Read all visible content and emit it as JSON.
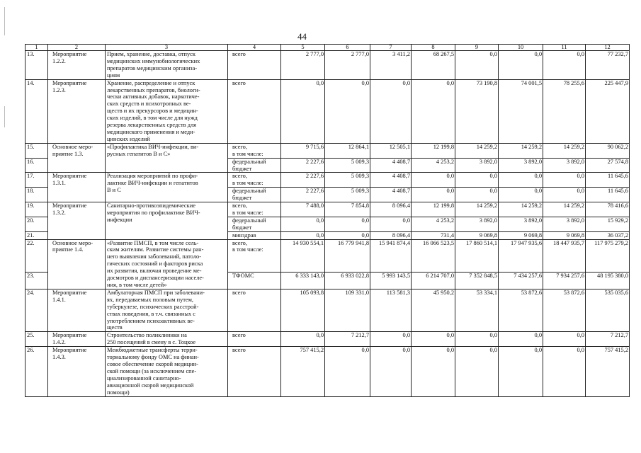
{
  "page_number": "44",
  "header": [
    "1",
    "2",
    "3",
    "4",
    "5",
    "6",
    "7",
    "8",
    "9",
    "10",
    "11",
    "12"
  ],
  "groups": [
    {
      "name": "Мероприятие\n1.2.2.",
      "desc": "Прием, хранение, доставка, отпуск\nмедицинских иммунобиологических\nпрепаратов медицинским организа-\nциям",
      "rows": [
        {
          "n": "13.",
          "source": "всего",
          "values": [
            "2 777,0",
            "2 777,0",
            "3 411,2",
            "68 267,5",
            "0,0",
            "0,0",
            "0,0",
            "77 232,7"
          ]
        }
      ]
    },
    {
      "name": "Мероприятие\n1.2.3.",
      "desc": "Хранение, распределение и отпуск\nлекарственных препаратов, биологи-\nчески активных добавок, наркотиче-\nских средств и психотропных ве-\nществ и их прекурсоров и медицин-\nских изделий, в том числе для нужд\nрезерва лекарственных средств для\nмедицинского применения и меди-\nцинских изделий",
      "rows": [
        {
          "n": "14.",
          "source": "всего",
          "values": [
            "0,0",
            "0,0",
            "0,0",
            "0,0",
            "73 190,8",
            "74 001,5",
            "78 255,6",
            "225 447,9"
          ]
        }
      ]
    },
    {
      "name": "Основное меро-\nприятие 1.3.",
      "desc": "«Профилактика ВИЧ-инфекции, ви-\nрусных гепатитов В и С»",
      "rows": [
        {
          "n": "15.",
          "source": "всего,\nв том числе:",
          "values": [
            "9 715,6",
            "12 864,1",
            "12 505,1",
            "12 199,8",
            "14 259,2",
            "14 259,2",
            "14 259,2",
            "90 062,2"
          ]
        },
        {
          "n": "16.",
          "source": "федеральный\nбюджет",
          "values": [
            "2 227,6",
            "5 009,3",
            "4 408,7",
            "4 253,2",
            "3 892,0",
            "3 892,0",
            "3 892,0",
            "27 574,8"
          ]
        }
      ]
    },
    {
      "name": "Мероприятие\n1.3.1.",
      "desc": "Реализация мероприятий по профи-\nлактике ВИЧ-инфекции и гепатитов\nВ и С",
      "rows": [
        {
          "n": "17.",
          "source": "всего,\nв том числе:",
          "values": [
            "2 227,6",
            "5 009,3",
            "4 408,7",
            "0,0",
            "0,0",
            "0,0",
            "0,0",
            "11 645,6"
          ]
        },
        {
          "n": "18.",
          "source": "федеральный\nбюджет",
          "values": [
            "2 227,6",
            "5 009,3",
            "4 408,7",
            "0,0",
            "0,0",
            "0,0",
            "0,0",
            "11 645,6"
          ]
        }
      ]
    },
    {
      "name": "Мероприятие\n1.3.2.",
      "desc": "Санитарно-противоэпидемические\nмероприятия по профилактике ВИЧ-\nинфекции",
      "rows": [
        {
          "n": "19.",
          "source": "всего,\nв том числе:",
          "values": [
            "7 488,0",
            "7 854,8",
            "8 096,4",
            "12 199,8",
            "14 259,2",
            "14 259,2",
            "14 259,2",
            "78 416,6"
          ]
        },
        {
          "n": "20.",
          "source": "федеральный\nбюджет",
          "values": [
            "0,0",
            "0,0",
            "0,0",
            "4 253,2",
            "3 892,0",
            "3 892,0",
            "3 892,0",
            "15 929,2"
          ]
        },
        {
          "n": "21.",
          "source": "минздрав",
          "values": [
            "0,0",
            "0,0",
            "8 096,4",
            "731,4",
            "9 069,8",
            "9 069,8",
            "9 069,8",
            "36 037,2"
          ]
        }
      ]
    },
    {
      "name": "Основное меро-\nприятие 1.4.",
      "desc": "«Развитие ПМСП, в том числе сель-\nским жителям. Развитие системы ран-\nнего выявления заболеваний, патоло-\nгических состояний и факторов риска\nих развития, включая проведение ме-\nдосмотров и диспансеризации населе-\nния, в том числе детей»",
      "rows": [
        {
          "n": "22.",
          "source": "всего,\nв том числе:",
          "values": [
            "14 930 554,1",
            "16 779 941,8",
            "15 941 874,4",
            "16 066 523,5",
            "17 860 514,1",
            "17 947 935,6",
            "18 447 935,7",
            "117 975 279,2"
          ]
        },
        {
          "n": "23.",
          "source": "ТФОМС",
          "values": [
            "6 333 143,0",
            "6 933 022,8",
            "5 993 143,5",
            "6 214 707,0",
            "7 352 848,5",
            "7 434 257,6",
            "7 934 257,6",
            "48 195 380,0"
          ]
        }
      ]
    },
    {
      "name": "Мероприятие\n1.4.1.",
      "desc": "Амбулаторная ПМСП при заболевани-\nях, передаваемых половым путем,\nтуберкулезе, психических расстрой-\nствах поведения, в т.ч. связанных с\nупотреблением психоактивных ве-\nществ",
      "rows": [
        {
          "n": "24.",
          "source": "всего",
          "values": [
            "105 093,8",
            "109 331,0",
            "113 581,3",
            "45 950,2",
            "53 334,1",
            "53 872,6",
            "53 872,6",
            "535 035,6"
          ]
        }
      ]
    },
    {
      "name": "Мероприятие\n1.4.2.",
      "desc": "Строительство поликлиники на\n 250 посещений в смену в с. Тоцкое",
      "rows": [
        {
          "n": "25.",
          "source": "всего",
          "values": [
            "0,0",
            "7 212,7",
            "0,0",
            "0,0",
            "0,0",
            "0,0",
            "0,0",
            "7 212,7"
          ]
        }
      ]
    },
    {
      "name": "Мероприятие\n1.4.3.",
      "desc": "Межбюджетные трансферты терри-\nториальному фонду ОМС на финан-\nсовое обеспечение скорой медицин-\nской помощи (за исключением спе-\nциализированной санитарно-\nавиационной скорой медицинской\nпомощи)",
      "rows": [
        {
          "n": "26.",
          "source": "всего",
          "values": [
            "757 415,2",
            "0,0",
            "0,0",
            "0,0",
            "0,0",
            "0,0",
            "0,0",
            "757 415,2"
          ]
        }
      ]
    }
  ]
}
